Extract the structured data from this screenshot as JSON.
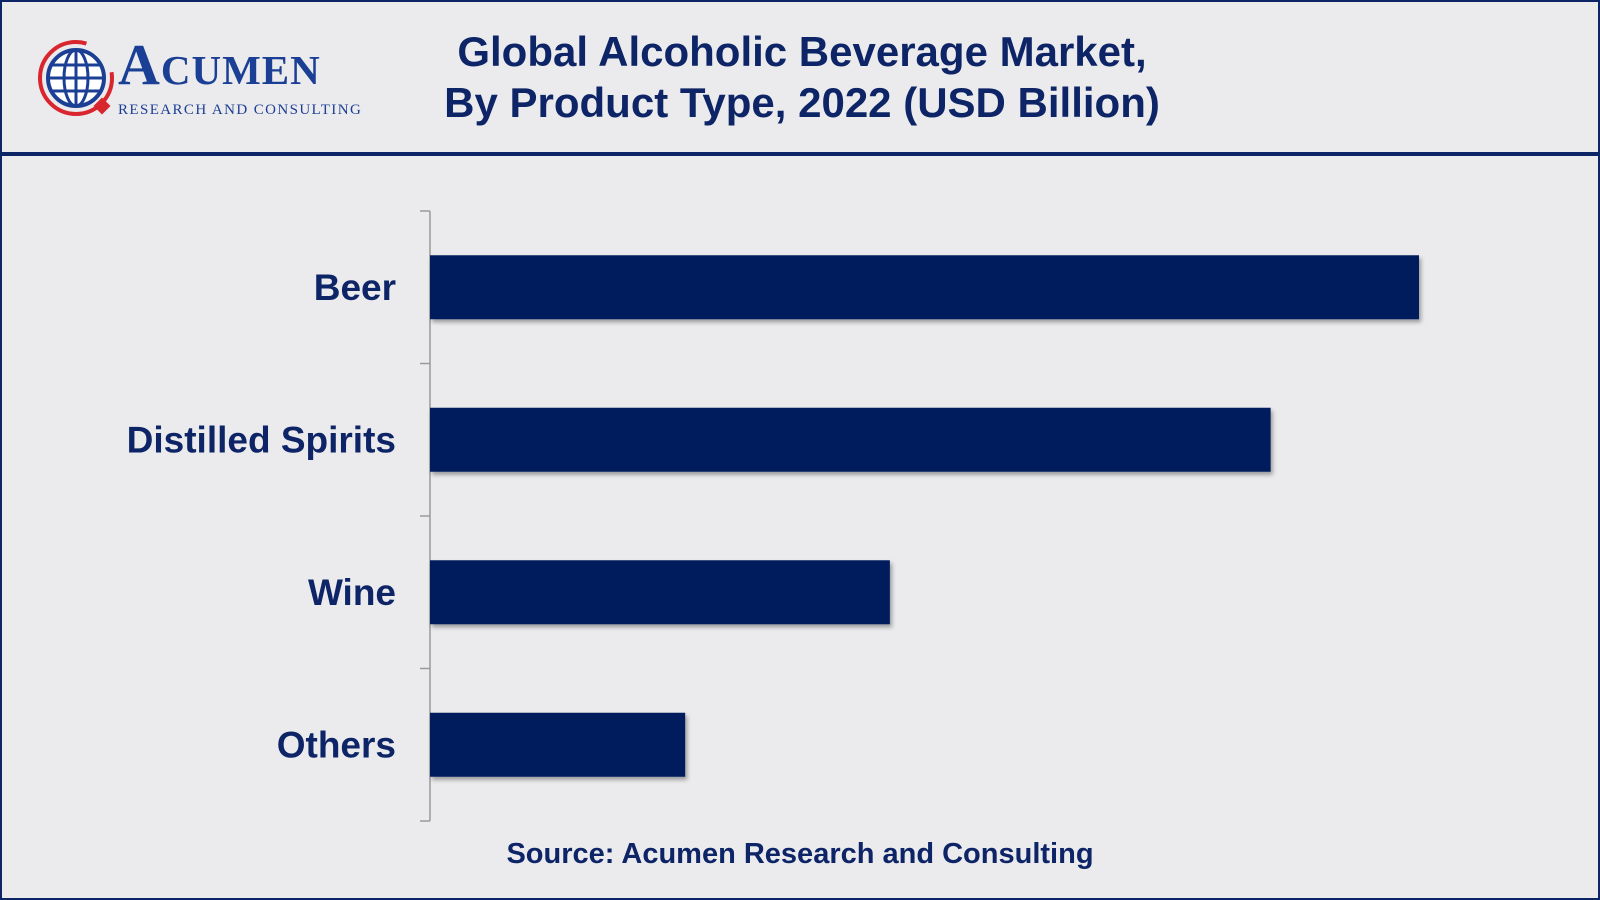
{
  "logo": {
    "name": "Acumen",
    "tagline": "RESEARCH AND CONSULTING"
  },
  "colors": {
    "bar": "#001f5c",
    "text": "#0d2466",
    "background": "#ebebee",
    "accent": "#d9252e"
  },
  "chart_data": {
    "type": "bar",
    "orientation": "horizontal",
    "title_line1": "Global Alcoholic Beverage Market,",
    "title_line2": "By Product Type, 2022 (USD Billion)",
    "categories": [
      "Beer",
      "Distilled Spirits",
      "Wine",
      "Others"
    ],
    "values": [
      100,
      85,
      46.5,
      25.8
    ],
    "xlabel": "",
    "ylabel": "",
    "xlim": [
      0,
      100
    ],
    "grid": false,
    "legend": "none",
    "source": "Source: Acumen Research and Consulting"
  }
}
